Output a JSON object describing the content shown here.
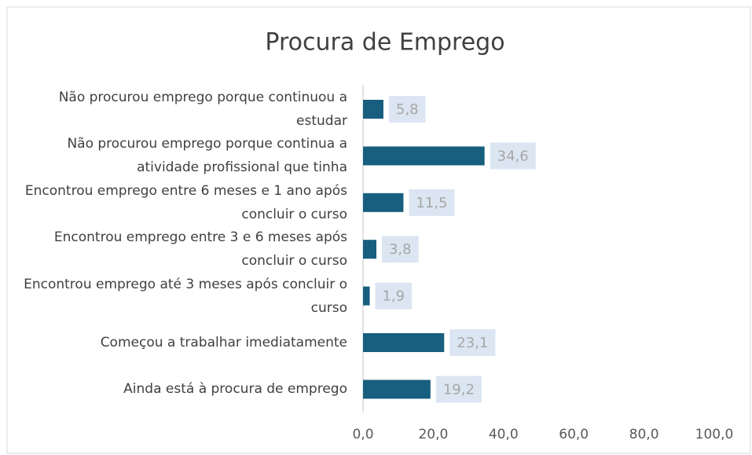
{
  "chart_data": {
    "type": "bar",
    "orientation": "horizontal",
    "title": "Procura de Emprego",
    "categories": [
      "Não procurou emprego porque continuou a estudar",
      "Não procurou emprego porque continua a atividade profissional que tinha",
      "Encontrou emprego entre 6 meses e 1 ano após concluir o curso",
      "Encontrou emprego entre 3 e 6 meses após concluir o curso",
      "Encontrou emprego até 3 meses após concluir o curso",
      "Começou a trabalhar imediatamente",
      "Ainda está à procura de emprego"
    ],
    "values": [
      5.8,
      34.6,
      11.5,
      3.8,
      1.9,
      23.1,
      19.2
    ],
    "value_labels": [
      "5,8",
      "34,6",
      "11,5",
      "3,8",
      "1,9",
      "23,1",
      "19,2"
    ],
    "color": "#175e7f",
    "xlim": [
      0,
      100
    ],
    "xticks": [
      {
        "value": 0,
        "label": "0,0"
      },
      {
        "value": 20,
        "label": "20,0"
      },
      {
        "value": 40,
        "label": "40,0"
      },
      {
        "value": 60,
        "label": "60,0"
      },
      {
        "value": 80,
        "label": "80,0"
      },
      {
        "value": 100,
        "label": "100,0"
      }
    ],
    "grid": false
  }
}
